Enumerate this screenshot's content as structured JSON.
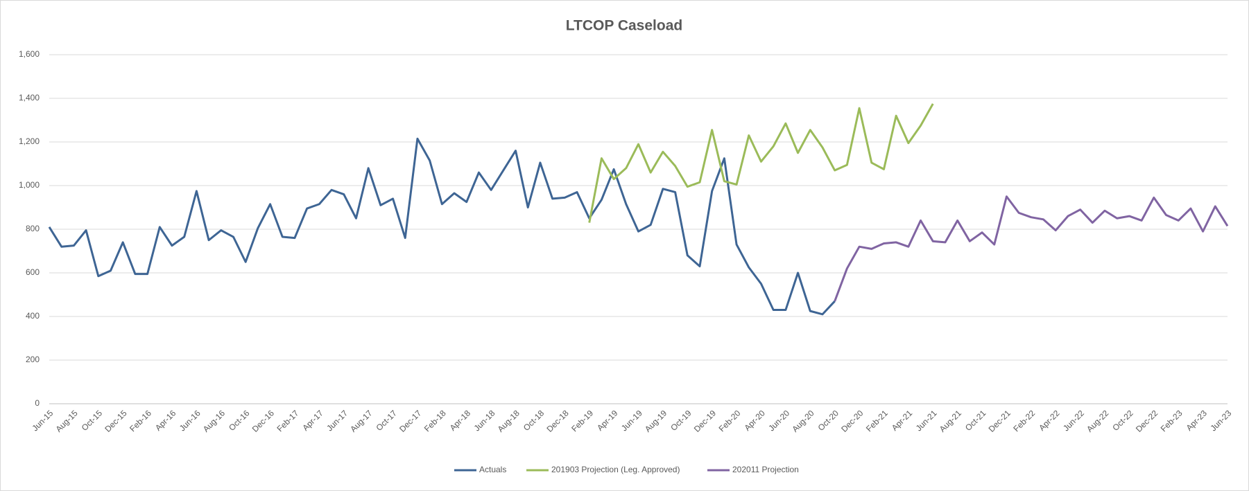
{
  "chart_data": {
    "type": "line",
    "title": "LTCOP Caseload",
    "categories": [
      "Jun-15",
      null,
      "Aug-15",
      null,
      "Oct-15",
      null,
      "Dec-15",
      null,
      "Feb-16",
      null,
      "Apr-16",
      null,
      "Jun-16",
      null,
      "Aug-16",
      null,
      "Oct-16",
      null,
      "Dec-16",
      null,
      "Feb-17",
      null,
      "Apr-17",
      null,
      "Jun-17",
      null,
      "Aug-17",
      null,
      "Oct-17",
      null,
      "Dec-17",
      null,
      "Feb-18",
      null,
      "Apr-18",
      null,
      "Jun-18",
      null,
      "Aug-18",
      null,
      "Oct-18",
      null,
      "Dec-18",
      null,
      "Feb-19",
      null,
      "Apr-19",
      null,
      "Jun-19",
      null,
      "Aug-19",
      null,
      "Oct-19",
      null,
      "Dec-19",
      null,
      "Feb-20",
      null,
      "Apr-20",
      null,
      "Jun-20",
      null,
      "Aug-20",
      null,
      "Oct-20",
      null,
      "Dec-20",
      null,
      "Feb-21",
      null,
      "Apr-21",
      null,
      "Jun-21",
      null,
      "Aug-21",
      null,
      "Oct-21",
      null,
      "Dec-21",
      null,
      "Feb-22",
      null,
      "Apr-22",
      null,
      "Jun-22",
      null,
      "Aug-22",
      null,
      "Oct-22",
      null,
      "Dec-22",
      null,
      "Feb-23",
      null,
      "Apr-23",
      null,
      "Jun-23"
    ],
    "series": [
      {
        "name": "Actuals",
        "color": "#3e6594",
        "values": [
          810,
          720,
          725,
          795,
          585,
          610,
          740,
          595,
          595,
          810,
          725,
          765,
          975,
          750,
          795,
          765,
          650,
          805,
          915,
          765,
          760,
          895,
          915,
          980,
          960,
          850,
          1080,
          910,
          940,
          760,
          1215,
          1115,
          915,
          965,
          925,
          1060,
          980,
          1070,
          1160,
          900,
          1105,
          940,
          945,
          970,
          850,
          935,
          1075,
          915,
          790,
          820,
          985,
          970,
          680,
          630,
          975,
          1125,
          730,
          625,
          550,
          430,
          430,
          600,
          425,
          410,
          470,
          null,
          null,
          null,
          null,
          null,
          null,
          null,
          null,
          null,
          null,
          null,
          null,
          null,
          null,
          null,
          null,
          null,
          null,
          null,
          null,
          null,
          null,
          null,
          null,
          null,
          null,
          null,
          null,
          null,
          null,
          null,
          null
        ]
      },
      {
        "name": "201903 Projection (Leg. Approved)",
        "color": "#9bbb59",
        "values": [
          null,
          null,
          null,
          null,
          null,
          null,
          null,
          null,
          null,
          null,
          null,
          null,
          null,
          null,
          null,
          null,
          null,
          null,
          null,
          null,
          null,
          null,
          null,
          null,
          null,
          null,
          null,
          null,
          null,
          null,
          null,
          null,
          null,
          null,
          null,
          null,
          null,
          null,
          null,
          null,
          null,
          null,
          null,
          null,
          830,
          1125,
          1030,
          1080,
          1190,
          1060,
          1155,
          1090,
          995,
          1015,
          1255,
          1020,
          1005,
          1230,
          1110,
          1180,
          1285,
          1150,
          1255,
          1175,
          1070,
          1095,
          1355,
          1105,
          1075,
          1320,
          1195,
          1275,
          1375,
          null,
          null,
          null,
          null,
          null,
          null,
          null,
          null,
          null,
          null,
          null,
          null,
          null,
          null,
          null,
          null,
          null,
          null,
          null,
          null,
          null,
          null,
          null,
          null
        ]
      },
      {
        "name": "202011 Projection",
        "color": "#8064a2",
        "values": [
          null,
          null,
          null,
          null,
          null,
          null,
          null,
          null,
          null,
          null,
          null,
          null,
          null,
          null,
          null,
          null,
          null,
          null,
          null,
          null,
          null,
          null,
          null,
          null,
          null,
          null,
          null,
          null,
          null,
          null,
          null,
          null,
          null,
          null,
          null,
          null,
          null,
          null,
          null,
          null,
          null,
          null,
          null,
          null,
          null,
          null,
          null,
          null,
          null,
          null,
          null,
          null,
          null,
          null,
          null,
          null,
          null,
          null,
          null,
          null,
          null,
          null,
          null,
          null,
          470,
          620,
          720,
          710,
          735,
          740,
          720,
          840,
          745,
          740,
          840,
          745,
          785,
          730,
          950,
          875,
          855,
          845,
          795,
          860,
          890,
          830,
          885,
          850,
          860,
          840,
          945,
          865,
          840,
          895,
          790,
          905,
          815
        ]
      }
    ],
    "ylim": [
      0,
      1600
    ],
    "yticks": [
      0,
      200,
      400,
      600,
      800,
      {
        "value": 1000,
        "label": "1,000"
      },
      {
        "value": 1200,
        "label": "1,200"
      },
      {
        "value": 1400,
        "label": "1,400"
      },
      {
        "value": 1600,
        "label": "1,600"
      }
    ],
    "grid": true,
    "legend": "bottom"
  }
}
